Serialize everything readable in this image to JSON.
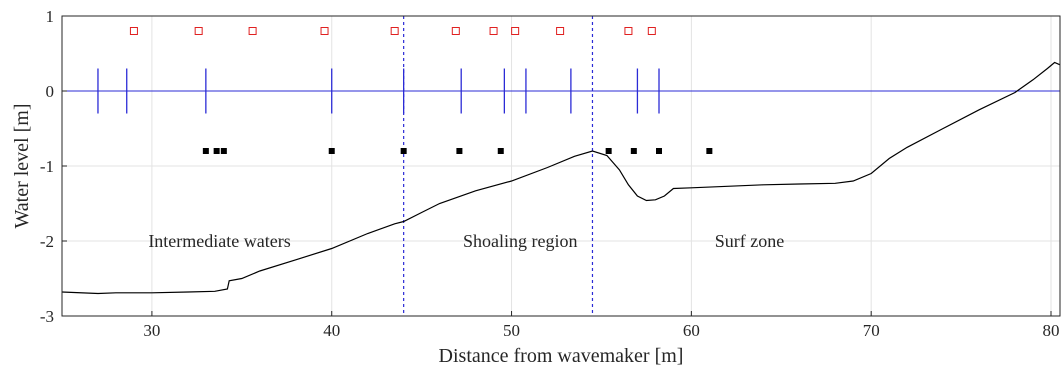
{
  "chart_data": {
    "type": "line",
    "title": "",
    "xlabel": "Distance from wavemaker [m]",
    "ylabel": "Water level [m]",
    "xlim": [
      25,
      80.5
    ],
    "ylim": [
      -3,
      1
    ],
    "xticks": [
      30,
      40,
      50,
      60,
      70,
      80
    ],
    "yticks": [
      -3,
      -2,
      -1,
      0,
      1
    ],
    "grid": true,
    "legend": "none",
    "colors": {
      "bathymetry": "#000000",
      "still_water": "#2b2bd6",
      "wave_gauges": "#2b2bd6",
      "region_dividers": "#2b2bd6",
      "open_markers": "#e02020",
      "filled_markers": "#000000",
      "grid": "#e3e3e3"
    },
    "series": [
      {
        "x": [
          25,
          27,
          28,
          30,
          32,
          33.5,
          34.2,
          34.3,
          35,
          36,
          38,
          40,
          42,
          43.5,
          44,
          45,
          46,
          48,
          50,
          52,
          53.5,
          54.5,
          55.3,
          56,
          56.5,
          57,
          57.5,
          58,
          58.5,
          59,
          60,
          62,
          64,
          66,
          68,
          69,
          70,
          71,
          72,
          74,
          76,
          78,
          79,
          79.8,
          80.2,
          80.5
        ],
        "y": [
          -2.68,
          -2.7,
          -2.69,
          -2.69,
          -2.68,
          -2.67,
          -2.64,
          -2.53,
          -2.5,
          -2.4,
          -2.25,
          -2.1,
          -1.9,
          -1.77,
          -1.74,
          -1.62,
          -1.5,
          -1.33,
          -1.2,
          -1.02,
          -0.87,
          -0.8,
          -0.86,
          -1.05,
          -1.25,
          -1.4,
          -1.46,
          -1.45,
          -1.4,
          -1.3,
          -1.29,
          -1.27,
          -1.25,
          -1.24,
          -1.23,
          -1.2,
          -1.1,
          -0.9,
          -0.75,
          -0.5,
          -0.25,
          -0.02,
          0.15,
          0.3,
          0.38,
          0.35
        ]
      },
      {
        "x": [
          25,
          80.5
        ],
        "y": [
          0,
          0
        ]
      }
    ],
    "wave_gauges_x": [
      27,
      28.6,
      33,
      40,
      44,
      47.2,
      49.6,
      50.8,
      53.3,
      57,
      58.2
    ],
    "wave_gauges_halfheight": 0.3,
    "open_squares": {
      "y": 0.8,
      "x": [
        29,
        32.6,
        35.6,
        39.6,
        43.5,
        46.9,
        49,
        50.2,
        52.7,
        56.5,
        57.8
      ]
    },
    "filled_squares": {
      "y": -0.8,
      "x": [
        33,
        33.6,
        34,
        40,
        44,
        47.1,
        49.4,
        55.4,
        56.8,
        58.2,
        61
      ]
    },
    "region_dividers_x": [
      44,
      54.5
    ],
    "annotations": [
      {
        "text": "Intermediate waters",
        "x": 29.8,
        "y": -2.0
      },
      {
        "text": "Shoaling region",
        "x": 47.3,
        "y": -2.0
      },
      {
        "text": "Surf zone",
        "x": 61.3,
        "y": -2.0
      }
    ]
  }
}
